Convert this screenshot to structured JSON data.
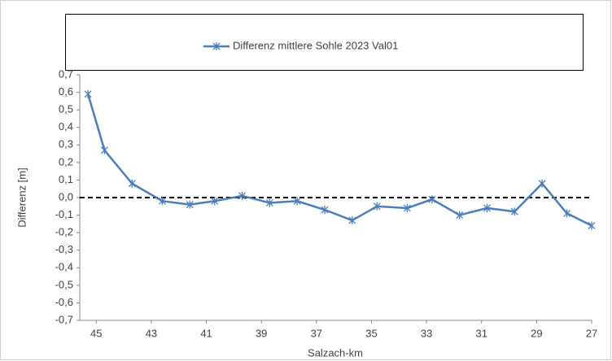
{
  "chart_data": {
    "type": "line",
    "xlabel": "Salzach-km",
    "ylabel": "Differenz [m]",
    "x": [
      45.3,
      44.7,
      43.7,
      42.6,
      41.6,
      40.7,
      39.7,
      38.7,
      37.7,
      36.7,
      35.7,
      34.8,
      33.7,
      32.8,
      31.8,
      30.8,
      29.8,
      28.8,
      27.9,
      27.0
    ],
    "series": [
      {
        "name": "Differenz mittlere Sohle 2023 Val01",
        "color": "#4a7ebb",
        "values": [
          0.59,
          0.27,
          0.08,
          -0.02,
          -0.04,
          -0.02,
          0.01,
          -0.03,
          -0.02,
          -0.07,
          -0.13,
          -0.05,
          -0.06,
          -0.01,
          -0.1,
          -0.06,
          -0.08,
          0.08,
          -0.09,
          -0.16
        ]
      }
    ],
    "xlim": [
      45.6,
      27
    ],
    "xticks": [
      45,
      43,
      41,
      39,
      37,
      35,
      33,
      31,
      29,
      27
    ],
    "ylim": [
      -0.7,
      0.7
    ],
    "yticks": [
      {
        "value": -0.7,
        "label": "-0,7"
      },
      {
        "value": -0.6,
        "label": "-0,6"
      },
      {
        "value": -0.5,
        "label": "-0,5"
      },
      {
        "value": -0.4,
        "label": "-0,4"
      },
      {
        "value": -0.3,
        "label": "-0,3"
      },
      {
        "value": -0.2,
        "label": "-0,2"
      },
      {
        "value": -0.1,
        "label": "-0,1"
      },
      {
        "value": 0,
        "label": "0,0"
      },
      {
        "value": 0.1,
        "label": "0,1"
      },
      {
        "value": 0.2,
        "label": "0,2"
      },
      {
        "value": 0.3,
        "label": "0,3"
      },
      {
        "value": 0.4,
        "label": "0,4"
      },
      {
        "value": 0.5,
        "label": "0,5"
      },
      {
        "value": 0.6,
        "label": "0,6"
      },
      {
        "value": 0.7,
        "label": "0,7"
      }
    ],
    "reference_line": 0,
    "legend": "top"
  }
}
